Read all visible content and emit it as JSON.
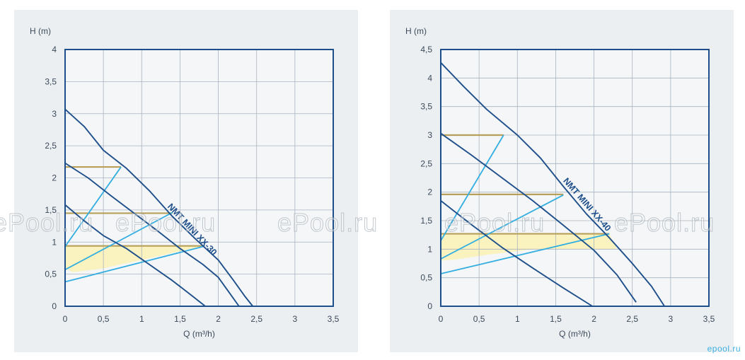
{
  "watermark": {
    "text": "ePool.ru",
    "corner_text": "epool.ru"
  },
  "chart_data": [
    {
      "type": "line",
      "xlabel": "Q (m³/h)",
      "ylabel": "H (m)",
      "xlim": [
        0,
        3.5
      ],
      "ylim": [
        0,
        4
      ],
      "x_ticks": [
        0,
        0.5,
        1,
        1.5,
        2,
        2.5,
        3,
        3.5
      ],
      "x_tick_labels": [
        "0",
        "0,5",
        "1",
        "1,5",
        "2",
        "2,5",
        "3",
        "3,5"
      ],
      "y_ticks": [
        0,
        0.5,
        1,
        1.5,
        2,
        2.5,
        3,
        3.5,
        4
      ],
      "y_tick_labels": [
        "0",
        "0,5",
        "1",
        "1,5",
        "2",
        "2,5",
        "3",
        "3,5",
        "4"
      ],
      "grid": true,
      "annotation": "NMT MINI XX-30",
      "pump_curves": [
        {
          "points": [
            [
              0,
              3.07
            ],
            [
              0.25,
              2.8
            ],
            [
              0.5,
              2.43
            ],
            [
              0.8,
              2.15
            ],
            [
              1.1,
              1.8
            ],
            [
              1.4,
              1.4
            ],
            [
              1.7,
              1.05
            ],
            [
              2.0,
              0.72
            ],
            [
              2.2,
              0.4
            ],
            [
              2.35,
              0.15
            ],
            [
              2.45,
              0
            ]
          ]
        },
        {
          "points": [
            [
              0,
              2.23
            ],
            [
              0.3,
              2.0
            ],
            [
              0.6,
              1.72
            ],
            [
              0.9,
              1.45
            ],
            [
              1.2,
              1.18
            ],
            [
              1.5,
              0.9
            ],
            [
              1.8,
              0.65
            ],
            [
              2.0,
              0.45
            ],
            [
              2.15,
              0.2
            ],
            [
              2.27,
              0
            ]
          ]
        },
        {
          "points": [
            [
              0,
              1.58
            ],
            [
              0.25,
              1.33
            ],
            [
              0.5,
              1.1
            ],
            [
              0.8,
              0.9
            ],
            [
              1.1,
              0.65
            ],
            [
              1.4,
              0.4
            ],
            [
              1.65,
              0.17
            ],
            [
              1.83,
              0
            ]
          ]
        }
      ],
      "system_curves": [
        {
          "points": [
            [
              0,
              0.93
            ],
            [
              0.73,
              2.17
            ]
          ]
        },
        {
          "points": [
            [
              0,
              0.57
            ],
            [
              1.4,
              1.46
            ]
          ]
        },
        {
          "points": [
            [
              0,
              0.38
            ],
            [
              1.8,
              0.93
            ]
          ]
        }
      ],
      "level_lines": [
        {
          "y": 2.17,
          "x_end": 0.73
        },
        {
          "y": 1.45,
          "x_end": 1.4
        },
        {
          "y": 0.94,
          "x_end": 1.8
        }
      ],
      "operating_zone": [
        [
          0,
          0.94
        ],
        [
          1.8,
          0.94
        ],
        [
          1.0,
          0.72
        ],
        [
          0.45,
          0.58
        ],
        [
          0.1,
          0.53
        ],
        [
          0,
          0.6
        ]
      ],
      "colors": {
        "pump": "#1e4f8a",
        "system": "#33aee0",
        "level": "#b8a05a",
        "zone": "#fbf3b8",
        "grid": "#aab4bf",
        "frame": "#1e4f8a"
      }
    },
    {
      "type": "line",
      "xlabel": "Q (m³/h)",
      "ylabel": "H (m)",
      "xlim": [
        0,
        3.5
      ],
      "ylim": [
        0,
        4.5
      ],
      "x_ticks": [
        0,
        0.5,
        1,
        1.5,
        2,
        2.5,
        3,
        3.5
      ],
      "x_tick_labels": [
        "0",
        "0,5",
        "1",
        "1,5",
        "2",
        "2,5",
        "3",
        "3,5"
      ],
      "y_ticks": [
        0,
        0.5,
        1,
        1.5,
        2,
        2.5,
        3,
        3.5,
        4,
        4.5
      ],
      "y_tick_labels": [
        "0",
        "0,5",
        "1",
        "1,5",
        "2",
        "2,5",
        "3",
        "3,5",
        "4",
        "4,5"
      ],
      "grid": true,
      "annotation": "NMT MINI XX-40",
      "pump_curves": [
        {
          "points": [
            [
              0,
              4.27
            ],
            [
              0.3,
              3.85
            ],
            [
              0.6,
              3.45
            ],
            [
              1.0,
              3.0
            ],
            [
              1.3,
              2.6
            ],
            [
              1.6,
              2.1
            ],
            [
              1.9,
              1.62
            ],
            [
              2.2,
              1.2
            ],
            [
              2.5,
              0.75
            ],
            [
              2.75,
              0.35
            ],
            [
              2.92,
              0
            ]
          ]
        },
        {
          "points": [
            [
              0,
              3.03
            ],
            [
              0.4,
              2.65
            ],
            [
              0.8,
              2.25
            ],
            [
              1.2,
              1.85
            ],
            [
              1.6,
              1.42
            ],
            [
              2.0,
              0.98
            ],
            [
              2.3,
              0.55
            ],
            [
              2.55,
              0.07
            ]
          ]
        },
        {
          "points": [
            [
              0,
              1.85
            ],
            [
              0.4,
              1.43
            ],
            [
              0.8,
              1.03
            ],
            [
              1.2,
              0.67
            ],
            [
              1.6,
              0.32
            ],
            [
              1.98,
              0
            ]
          ]
        }
      ],
      "system_curves": [
        {
          "points": [
            [
              0,
              1.15
            ],
            [
              0.82,
              3.0
            ]
          ]
        },
        {
          "points": [
            [
              0,
              0.83
            ],
            [
              1.6,
              1.95
            ]
          ]
        },
        {
          "points": [
            [
              0,
              0.57
            ],
            [
              2.2,
              1.27
            ]
          ]
        }
      ],
      "level_lines": [
        {
          "y": 3.0,
          "x_end": 0.82
        },
        {
          "y": 1.96,
          "x_end": 1.6
        },
        {
          "y": 1.27,
          "x_end": 2.2
        }
      ],
      "operating_zone": [
        [
          0,
          1.27
        ],
        [
          2.2,
          1.27
        ],
        [
          2.3,
          1.0
        ],
        [
          1.2,
          1.0
        ],
        [
          0.6,
          0.9
        ],
        [
          0.2,
          0.82
        ],
        [
          0,
          0.8
        ]
      ],
      "colors": {
        "pump": "#1e4f8a",
        "system": "#33aee0",
        "level": "#b8a05a",
        "zone": "#fbf3b8",
        "grid": "#aab4bf",
        "frame": "#1e4f8a"
      }
    }
  ]
}
